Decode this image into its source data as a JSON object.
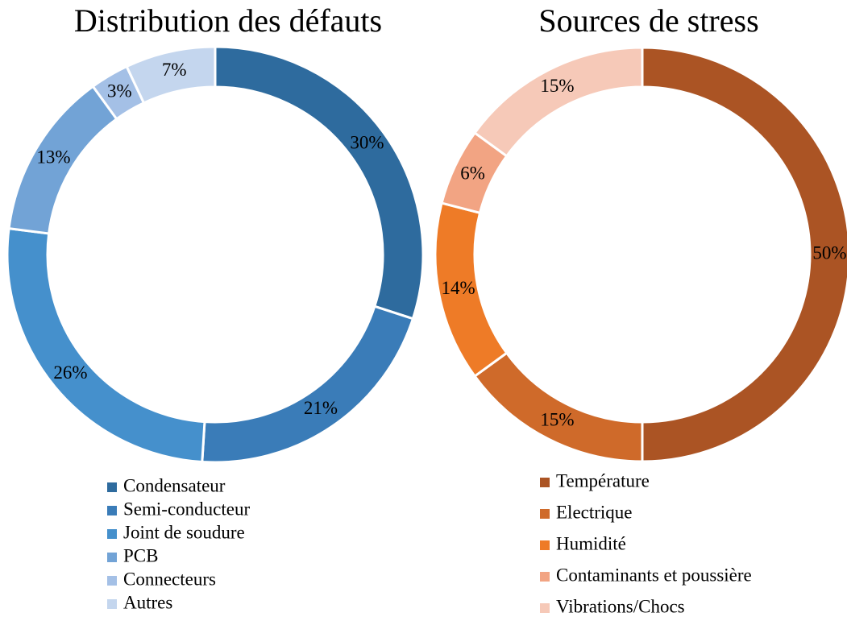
{
  "chart_data": [
    {
      "type": "pie",
      "title": "Distribution des défauts",
      "categories": [
        "Condensateur",
        "Semi-conducteur",
        "Joint de soudure",
        "PCB",
        "Connecteurs",
        "Autres"
      ],
      "values": [
        30,
        21,
        26,
        13,
        3,
        7
      ],
      "value_labels": [
        "30%",
        "21%",
        "26%",
        "13%",
        "3%",
        "7%"
      ],
      "colors": [
        "#2e6b9e",
        "#3a7cb8",
        "#4590cc",
        "#72a3d6",
        "#a4c0e6",
        "#c4d6ee"
      ]
    },
    {
      "type": "pie",
      "title": "Sources de stress",
      "categories": [
        "Température",
        "Electrique",
        "Humidité",
        "Contaminants et poussière",
        "Vibrations/Chocs"
      ],
      "values": [
        50,
        15,
        14,
        6,
        15
      ],
      "value_labels": [
        "50%",
        "15%",
        "14%",
        "6%",
        "15%"
      ],
      "colors": [
        "#ab5424",
        "#cf6a2a",
        "#ee7b27",
        "#f2a483",
        "#f6c9b8"
      ]
    }
  ]
}
